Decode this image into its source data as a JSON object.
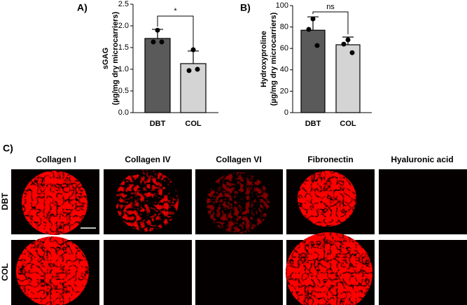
{
  "chart_data": [
    {
      "type": "bar",
      "panel_label": "A)",
      "ylabel": [
        "sGAG",
        "(µg/mg dry microcarriers)"
      ],
      "categories": [
        "DBT",
        "COL"
      ],
      "values": [
        1.71,
        1.13
      ],
      "errors": [
        0.21,
        0.29
      ],
      "points": [
        [
          1.9,
          1.63,
          1.63
        ],
        [
          1.45,
          0.97,
          1.0
        ]
      ],
      "colors": [
        "#5a5a5a",
        "#d4d4d4"
      ],
      "ylim": [
        0,
        2.5
      ],
      "yticks": [
        {
          "value": 0,
          "label": "0.0"
        },
        0.5,
        {
          "value": 1,
          "label": "1.0"
        },
        1.5,
        {
          "value": 2,
          "label": "2.0"
        },
        2.5
      ],
      "significance": "*"
    },
    {
      "type": "bar",
      "panel_label": "B)",
      "ylabel": [
        "Hydroxyproline",
        "(µg/mg dry microcarriers)"
      ],
      "categories": [
        "DBT",
        "COL"
      ],
      "values": [
        77,
        63.4
      ],
      "errors": [
        12.5,
        7.2
      ],
      "points": [
        [
          87.6,
          77.8,
          62.7
        ],
        [
          68,
          64,
          56
        ]
      ],
      "colors": [
        "#5a5a5a",
        "#d4d4d4"
      ],
      "ylim": [
        0,
        100
      ],
      "yticks": [
        0,
        20,
        40,
        60,
        80,
        100
      ],
      "significance": "ns"
    }
  ],
  "panel_c": {
    "label": "C)",
    "columns": [
      "Collagen I",
      "Collagen IV",
      "Collagen VI",
      "Fibronectin",
      "Hyaluronic acid"
    ],
    "rows": [
      "DBT",
      "COL"
    ]
  }
}
